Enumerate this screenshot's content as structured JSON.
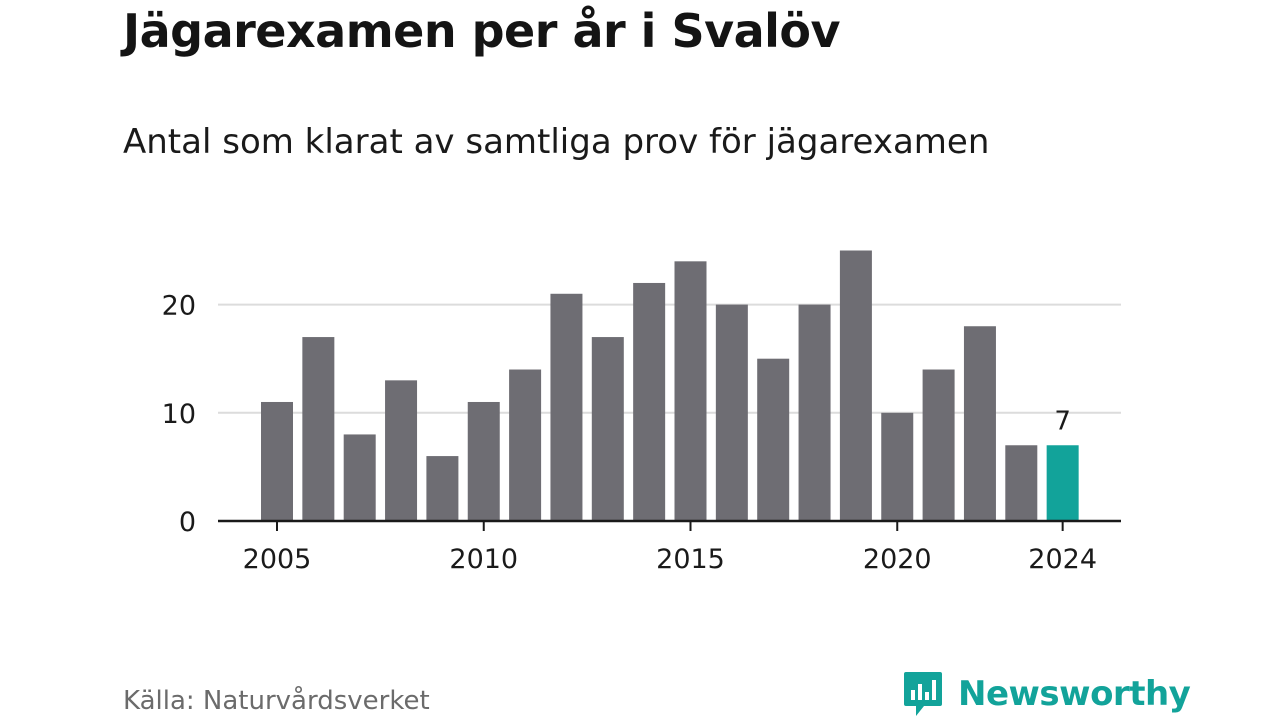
{
  "title": "Jägarexamen per år i Svalöv",
  "subtitle": "Antal som klarat av samtliga prov för jägarexamen",
  "source": "Källa: Naturvårdsverket",
  "brand": {
    "name": "Newsworthy",
    "icon": "newsworthy-logo-icon",
    "color": "#12a39a"
  },
  "colors": {
    "bar": "#6e6d73",
    "highlight": "#12a39a",
    "grid": "#dcdcdc",
    "axis": "#1a1a1a"
  },
  "chart_data": {
    "type": "bar",
    "categories": [
      "2005",
      "2006",
      "2007",
      "2008",
      "2009",
      "2010",
      "2011",
      "2012",
      "2013",
      "2014",
      "2015",
      "2016",
      "2017",
      "2018",
      "2019",
      "2020",
      "2021",
      "2022",
      "2023",
      "2024"
    ],
    "values": [
      11,
      17,
      8,
      13,
      6,
      11,
      14,
      21,
      17,
      22,
      24,
      20,
      15,
      20,
      25,
      10,
      14,
      18,
      7,
      7
    ],
    "x_tick_labels": [
      "2005",
      "2010",
      "2015",
      "2020",
      "2024"
    ],
    "y_ticks": [
      0,
      10,
      20
    ],
    "ylim": [
      0,
      25
    ],
    "grid": true,
    "highlight": {
      "category": "2024",
      "label": "7"
    }
  }
}
